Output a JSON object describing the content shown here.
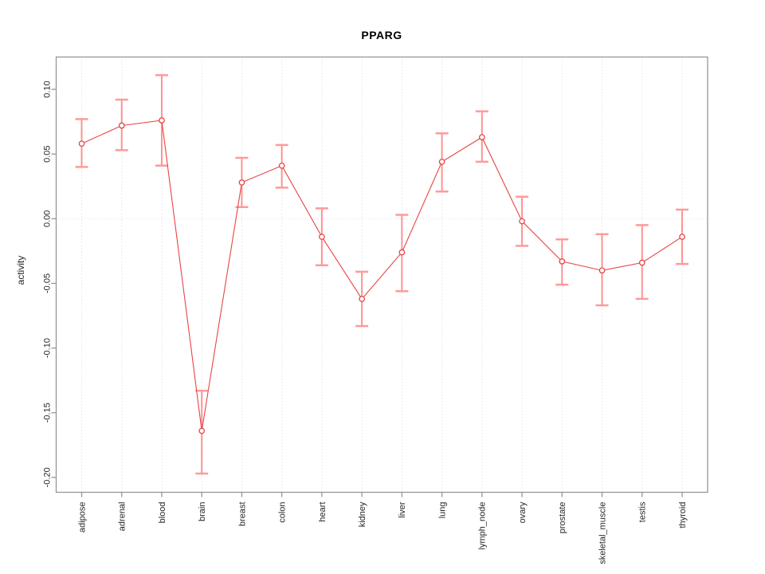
{
  "title": "PPARG",
  "chart_data": {
    "type": "line",
    "title": "PPARG",
    "xlabel": "",
    "ylabel": "activity",
    "legend": "none",
    "grid": "vertical dotted gridlines at each category plus dotted horizontal line at zero",
    "marker": "open-circle",
    "error_bars": true,
    "categories": [
      "adipose",
      "adrenal",
      "blood",
      "brain",
      "breast",
      "colon",
      "heart",
      "kidney",
      "liver",
      "lung",
      "lymph_node",
      "ovary",
      "prostate",
      "skeletal_muscle",
      "testis",
      "thyroid"
    ],
    "series": [
      {
        "name": "activity",
        "values": [
          0.058,
          0.072,
          0.076,
          -0.164,
          0.028,
          0.041,
          -0.014,
          -0.062,
          -0.026,
          0.044,
          0.063,
          -0.002,
          -0.033,
          -0.04,
          -0.034,
          -0.014
        ],
        "err_high": [
          0.077,
          0.092,
          0.111,
          -0.133,
          0.047,
          0.057,
          0.008,
          -0.041,
          0.003,
          0.066,
          0.083,
          0.017,
          -0.016,
          -0.012,
          -0.005,
          0.007
        ],
        "err_low": [
          0.04,
          0.053,
          0.041,
          -0.197,
          0.009,
          0.024,
          -0.036,
          -0.083,
          -0.056,
          0.021,
          0.044,
          -0.021,
          -0.051,
          -0.067,
          -0.062,
          -0.035
        ]
      }
    ],
    "yticks": [
      0.1,
      0.05,
      0.0,
      -0.05,
      -0.1,
      -0.15,
      -0.2
    ],
    "ytick_labels": [
      "0.10",
      "0.05",
      "0.00",
      "-0.05",
      "-0.10",
      "-0.15",
      "-0.20"
    ],
    "ylim": [
      -0.2115,
      0.125
    ],
    "colors": {
      "line": "#e84444",
      "errorbar": "#ff9a9a",
      "grid": "#d9d9d9",
      "frame": "#979797",
      "text": "#262626",
      "background": "#ffffff"
    }
  }
}
